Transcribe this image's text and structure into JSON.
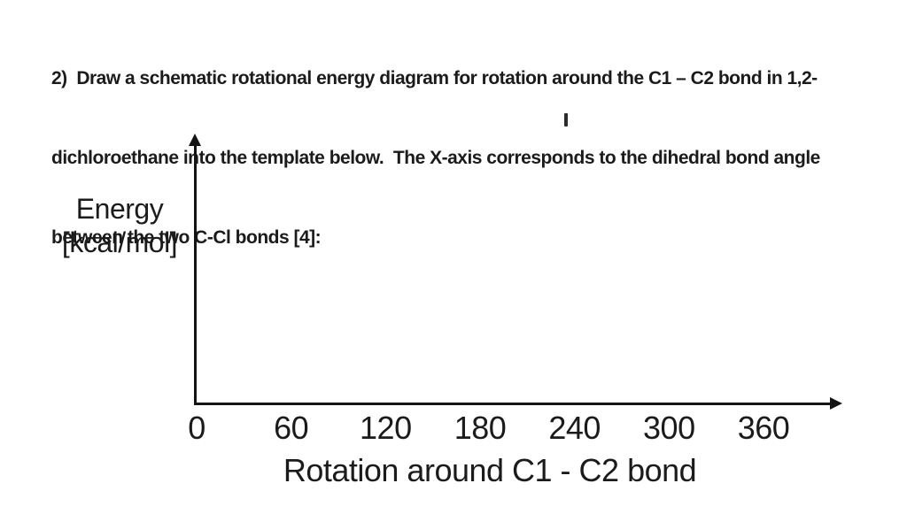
{
  "question": {
    "lines": [
      "2)  Draw a schematic rotational energy diagram for rotation around the C1 – C2 bond in 1,2-",
      "dichloroethane into the template below.  The X-axis corresponds to the dihedral bond angle",
      "between the two C-Cl bonds [4]:"
    ]
  },
  "caret": {
    "glyph": "I"
  },
  "chart_data": {
    "type": "line",
    "title": "",
    "xlabel": "Rotation around C1 - C2 bond",
    "ylabel_lines": [
      "Energy",
      "[kcal/mol]"
    ],
    "x_ticks": [
      0,
      60,
      120,
      180,
      240,
      300,
      360
    ],
    "xlim": [
      0,
      360
    ],
    "series": [],
    "grid": false,
    "legend": false
  },
  "colors": {
    "text": "#1b1b1b",
    "axis": "#141414",
    "background": "#ffffff"
  }
}
